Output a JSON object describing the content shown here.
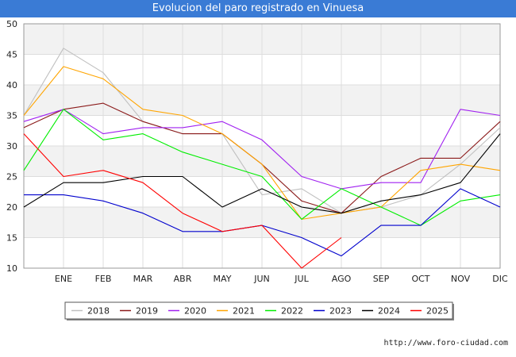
{
  "header": {
    "title": "Evolucion del paro registrado en Vinuesa"
  },
  "footer": {
    "url": "http://www.foro-ciudad.com"
  },
  "chart_data": {
    "type": "line",
    "title": "Evolucion del paro registrado en Vinuesa",
    "categories": [
      "",
      "ENE",
      "FEB",
      "MAR",
      "ABR",
      "MAY",
      "JUN",
      "JUL",
      "AGO",
      "SEP",
      "OCT",
      "NOV",
      "DIC"
    ],
    "ylim": [
      10,
      50
    ],
    "yticks": [
      10,
      15,
      20,
      25,
      30,
      35,
      40,
      45,
      50
    ],
    "grid": true,
    "legend_position": "bottom",
    "series": [
      {
        "name": "2018",
        "color": "#c0c0c0",
        "values": [
          35,
          46,
          42,
          34,
          32,
          32,
          22,
          23,
          19,
          20,
          22,
          27,
          33
        ]
      },
      {
        "name": "2019",
        "color": "#8b1a1a",
        "values": [
          33,
          36,
          37,
          34,
          32,
          32,
          27,
          21,
          19,
          25,
          28,
          28,
          34
        ]
      },
      {
        "name": "2020",
        "color": "#a020f0",
        "values": [
          34,
          36,
          32,
          33,
          33,
          34,
          31,
          25,
          23,
          24,
          24,
          36,
          35
        ]
      },
      {
        "name": "2021",
        "color": "#ffa500",
        "values": [
          35,
          43,
          41,
          36,
          35,
          32,
          27,
          18,
          19,
          20,
          26,
          27,
          26
        ]
      },
      {
        "name": "2022",
        "color": "#00ee00",
        "values": [
          26,
          36,
          31,
          32,
          29,
          27,
          25,
          18,
          23,
          20,
          17,
          21,
          22
        ]
      },
      {
        "name": "2023",
        "color": "#0000cd",
        "values": [
          22,
          22,
          21,
          19,
          16,
          16,
          17,
          15,
          12,
          17,
          17,
          23,
          20
        ]
      },
      {
        "name": "2024",
        "color": "#000000",
        "values": [
          20,
          24,
          24,
          25,
          25,
          20,
          23,
          20,
          19,
          21,
          22,
          24,
          32
        ]
      },
      {
        "name": "2025",
        "color": "#ff0000",
        "values": [
          32,
          25,
          26,
          24,
          19,
          16,
          17,
          10,
          15,
          null,
          null,
          null,
          null
        ]
      }
    ]
  }
}
